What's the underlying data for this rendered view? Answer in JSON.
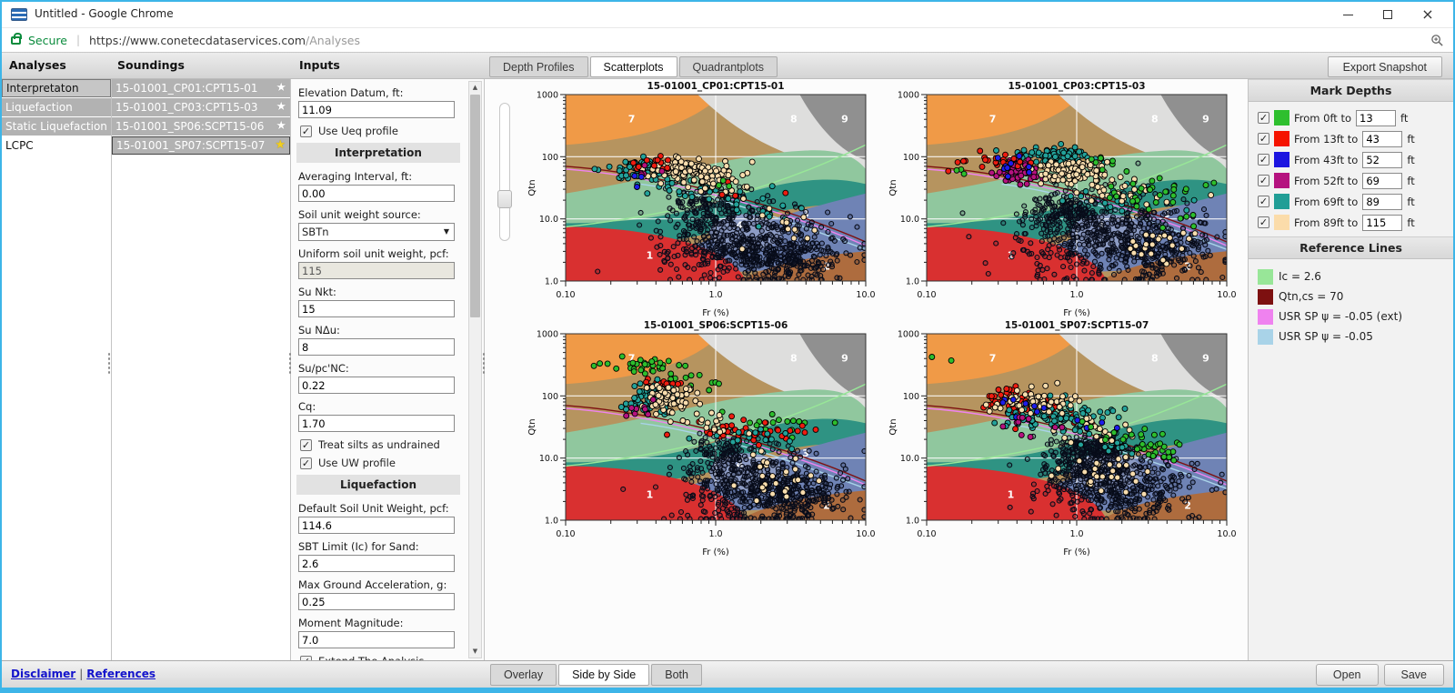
{
  "window": {
    "title": "Untitled - Google Chrome"
  },
  "browser": {
    "secure_label": "Secure",
    "url_sep": "|",
    "url_main": "https://www.conetecdataservices.com",
    "url_path": "/Analyses"
  },
  "header": {
    "analyses_title": "Analyses",
    "soundings_title": "Soundings",
    "inputs_title": "Inputs",
    "tabs": [
      {
        "label": "Depth Profiles",
        "active": false
      },
      {
        "label": "Scatterplots",
        "active": true
      },
      {
        "label": "Quadrantplots",
        "active": false
      }
    ],
    "export_button": "Export Snapshot"
  },
  "analyses": {
    "items": [
      {
        "label": "Interpretaton",
        "style": "selected"
      },
      {
        "label": "Liquefaction",
        "style": "gray"
      },
      {
        "label": "Static Liquefaction",
        "style": "gray"
      },
      {
        "label": "LCPC",
        "style": "plain"
      }
    ]
  },
  "soundings": {
    "items": [
      {
        "label": "15-01001_CP01:CPT15-01",
        "starred": false,
        "selected": false
      },
      {
        "label": "15-01001_CP03:CPT15-03",
        "starred": false,
        "selected": false
      },
      {
        "label": "15-01001_SP06:SCPT15-06",
        "starred": false,
        "selected": false
      },
      {
        "label": "15-01001_SP07:SCPT15-07",
        "starred": true,
        "selected": true
      }
    ]
  },
  "inputs": {
    "fields": [
      {
        "type": "input",
        "label": "Elevation Datum, ft:",
        "value": "11.09"
      },
      {
        "type": "checkbox",
        "label": "Use Ueq profile",
        "checked": true
      },
      {
        "type": "section",
        "label": "Interpretation"
      },
      {
        "type": "input",
        "label": "Averaging Interval, ft:",
        "value": "0.00"
      },
      {
        "type": "select",
        "label": "Soil unit weight source:",
        "value": "SBTn"
      },
      {
        "type": "input_disabled",
        "label": "Uniform soil unit weight, pcf:",
        "value": "115"
      },
      {
        "type": "input",
        "label": "Su Nkt:",
        "value": "15"
      },
      {
        "type": "input",
        "label": "Su NΔu:",
        "value": "8"
      },
      {
        "type": "input",
        "label": "Su/pc'NC:",
        "value": "0.22"
      },
      {
        "type": "input",
        "label": "Cq:",
        "value": "1.70"
      },
      {
        "type": "checkbox",
        "label": "Treat silts as undrained",
        "checked": true
      },
      {
        "type": "checkbox",
        "label": "Use UW profile",
        "checked": true
      },
      {
        "type": "section",
        "label": "Liquefaction"
      },
      {
        "type": "input",
        "label": "Default Soil Unit Weight, pcf:",
        "value": "114.6"
      },
      {
        "type": "input",
        "label": "SBT Limit (Ic) for Sand:",
        "value": "2.6"
      },
      {
        "type": "input",
        "label": "Max Ground Acceleration, g:",
        "value": "0.25"
      },
      {
        "type": "input",
        "label": "Moment Magnitude:",
        "value": "7.0"
      },
      {
        "type": "checkbox",
        "label": "Extend The Analysis",
        "checked": true
      },
      {
        "type": "checkbox",
        "label": "Use UW profile",
        "checked": true
      },
      {
        "type": "checkbox",
        "label": "Use Ueq profile",
        "checked": true
      }
    ]
  },
  "mark_depths": {
    "title": "Mark Depths",
    "rows": [
      {
        "checked": true,
        "color": "#2ebf2e",
        "label": "From 0ft to",
        "value": "13",
        "unit": "ft"
      },
      {
        "checked": true,
        "color": "#f51400",
        "label": "From 13ft to",
        "value": "43",
        "unit": "ft"
      },
      {
        "checked": true,
        "color": "#1b14e0",
        "label": "From 43ft to",
        "value": "52",
        "unit": "ft"
      },
      {
        "checked": true,
        "color": "#b5127f",
        "label": "From 52ft to",
        "value": "69",
        "unit": "ft"
      },
      {
        "checked": true,
        "color": "#219e96",
        "label": "From 69ft to",
        "value": "89",
        "unit": "ft"
      },
      {
        "checked": true,
        "color": "#fbdcaa",
        "label": "From 89ft to",
        "value": "115",
        "unit": "ft"
      }
    ]
  },
  "reference_lines": {
    "title": "Reference Lines",
    "items": [
      {
        "color": "#98e698",
        "label": "Ic = 2.6"
      },
      {
        "color": "#7d1010",
        "label": "Qtn,cs = 70"
      },
      {
        "color": "#ef82ef",
        "label": "USR SP ψ = -0.05 (ext)"
      },
      {
        "color": "#a9d3e8",
        "label": "USR SP ψ = -0.05"
      }
    ]
  },
  "footer": {
    "links": [
      "Disclaimer",
      "References"
    ],
    "link_sep": "|",
    "view_buttons": [
      {
        "label": "Overlay",
        "active": false
      },
      {
        "label": "Side by Side",
        "active": true
      },
      {
        "label": "Both",
        "active": false
      }
    ],
    "open_button": "Open",
    "save_button": "Save"
  },
  "chart_style": {
    "zone_colors": {
      "z1": "#d93030",
      "z2": "#ae6c3e",
      "z3": "#6f83b5",
      "z4": "#8d9cc4",
      "z5": "#90c79e",
      "z6": "#2f9383",
      "z7a": "#f09a47",
      "z7b": "#b6945f",
      "z8": "#dededd",
      "z9": "#909090"
    },
    "zone_labels": [
      {
        "t": "7",
        "u": 0.22,
        "v": 0.87
      },
      {
        "t": "8",
        "u": 0.76,
        "v": 0.87
      },
      {
        "t": "9",
        "u": 0.93,
        "v": 0.87
      },
      {
        "t": "1",
        "u": 0.28,
        "v": 0.14
      },
      {
        "t": "2",
        "u": 0.87,
        "v": 0.08
      },
      {
        "t": "3",
        "u": 0.8,
        "v": 0.36
      },
      {
        "t": "4",
        "u": 0.58,
        "v": 0.3
      }
    ],
    "palette": {
      "g": "#2dbe2d",
      "r": "#ee1c10",
      "b": "#1d1deb",
      "m": "#b5127f",
      "t": "#23a29a",
      "c": "#f8ddae"
    },
    "ref_curves": [
      {
        "name": "Ic = 2.6",
        "color": "#98e698",
        "pts": [
          [
            0,
            0.29
          ],
          [
            0.4,
            0.36
          ],
          [
            0.7,
            0.5
          ],
          [
            1,
            0.73
          ]
        ]
      },
      {
        "name": "USR SP psi=-0.05",
        "color": "#a9d3e8",
        "pts": [
          [
            0.25,
            0.52
          ],
          [
            0.5,
            0.47
          ],
          [
            0.78,
            0.3
          ],
          [
            1,
            0.17
          ]
        ]
      },
      {
        "name": "USR SP psi=-0.05 ext",
        "color": "#ef82ef",
        "pts": [
          [
            0,
            0.6
          ],
          [
            0.3,
            0.565
          ],
          [
            0.7,
            0.4
          ],
          [
            1,
            0.19
          ]
        ]
      },
      {
        "name": "Qtn,cs = 70",
        "color": "#7d1010",
        "pts": [
          [
            0,
            0.615
          ],
          [
            0.3,
            0.58
          ],
          [
            0.7,
            0.42
          ],
          [
            1,
            0.21
          ]
        ]
      }
    ],
    "grid_color": "#ffffff"
  },
  "chart_data": [
    {
      "type": "scatter",
      "title": "15-01001_CP01:CPT15-01",
      "xlabel": "Fr (%)",
      "ylabel": "Qtn",
      "xticks": [
        "0.10",
        "1.0",
        "10.0"
      ],
      "yticks": [
        "1.0",
        "10.0",
        "100",
        "1000"
      ],
      "xrange": [
        0.1,
        10
      ],
      "yrange": [
        1,
        1000
      ],
      "log_axes": true,
      "clusters": [
        {
          "color": "k",
          "x": 0.22,
          "y": 0.55,
          "sx": 0.28,
          "sy": 0.3,
          "n": 450
        },
        {
          "color": "k",
          "x": 0.02,
          "y": 1.1,
          "sx": 0.14,
          "sy": 0.2,
          "n": 140
        },
        {
          "color": "k",
          "x": 0.5,
          "y": 0.35,
          "sx": 0.18,
          "sy": 0.2,
          "n": 150
        },
        {
          "color": "k",
          "x": -0.13,
          "y": 1.33,
          "sx": 0.1,
          "sy": 0.1,
          "n": 35
        },
        {
          "color": "t",
          "x": -0.5,
          "y": 1.78,
          "sx": 0.1,
          "sy": 0.09,
          "n": 75
        },
        {
          "color": "t",
          "x": -0.13,
          "y": 1.58,
          "sx": 0.15,
          "sy": 0.14,
          "n": 40
        },
        {
          "color": "t",
          "x": 0.38,
          "y": 1.1,
          "sx": 0.14,
          "sy": 0.12,
          "n": 12
        },
        {
          "color": "c",
          "x": -0.2,
          "y": 1.8,
          "sx": 0.12,
          "sy": 0.08,
          "n": 90
        },
        {
          "color": "c",
          "x": 0.02,
          "y": 1.6,
          "sx": 0.12,
          "sy": 0.12,
          "n": 45
        },
        {
          "color": "c",
          "x": 0.48,
          "y": 0.9,
          "sx": 0.14,
          "sy": 0.14,
          "n": 13
        },
        {
          "color": "r",
          "x": -0.42,
          "y": 1.88,
          "sx": 0.08,
          "sy": 0.06,
          "n": 13
        },
        {
          "color": "r",
          "x": 0.18,
          "y": 1.5,
          "sx": 0.1,
          "sy": 0.07,
          "n": 4
        },
        {
          "color": "m",
          "x": -0.5,
          "y": 1.7,
          "sx": 0.05,
          "sy": 0.08,
          "n": 5
        },
        {
          "color": "b",
          "x": -0.52,
          "y": 1.62,
          "sx": 0.04,
          "sy": 0.05,
          "n": 3
        },
        {
          "color": "g",
          "x": 0.05,
          "y": 1.55,
          "sx": 0.06,
          "sy": 0.06,
          "n": 3
        }
      ]
    },
    {
      "type": "scatter",
      "title": "15-01001_CP03:CPT15-03",
      "xlabel": "Fr (%)",
      "ylabel": "Qtn",
      "xticks": [
        "0.10",
        "1.0",
        "10.0"
      ],
      "yticks": [
        "1.0",
        "10.0",
        "100",
        "1000"
      ],
      "xrange": [
        0.1,
        10
      ],
      "yrange": [
        1,
        1000
      ],
      "log_axes": true,
      "clusters": [
        {
          "color": "k",
          "x": 0.2,
          "y": 0.7,
          "sx": 0.3,
          "sy": 0.33,
          "n": 480
        },
        {
          "color": "k",
          "x": -0.05,
          "y": 1.15,
          "sx": 0.12,
          "sy": 0.18,
          "n": 130
        },
        {
          "color": "k",
          "x": 0.55,
          "y": 0.45,
          "sx": 0.18,
          "sy": 0.22,
          "n": 170
        },
        {
          "color": "t",
          "x": -0.15,
          "y": 2.0,
          "sx": 0.13,
          "sy": 0.08,
          "n": 85
        },
        {
          "color": "t",
          "x": 0.3,
          "y": 1.35,
          "sx": 0.2,
          "sy": 0.14,
          "n": 18
        },
        {
          "color": "m",
          "x": -0.38,
          "y": 1.75,
          "sx": 0.07,
          "sy": 0.1,
          "n": 55
        },
        {
          "color": "c",
          "x": -0.02,
          "y": 1.75,
          "sx": 0.13,
          "sy": 0.1,
          "n": 110
        },
        {
          "color": "c",
          "x": 0.3,
          "y": 1.42,
          "sx": 0.15,
          "sy": 0.12,
          "n": 30
        },
        {
          "color": "c",
          "x": 0.55,
          "y": 0.6,
          "sx": 0.12,
          "sy": 0.15,
          "n": 22
        },
        {
          "color": "r",
          "x": -0.48,
          "y": 1.92,
          "sx": 0.08,
          "sy": 0.07,
          "n": 20
        },
        {
          "color": "r",
          "x": -0.75,
          "y": 1.85,
          "sx": 0.06,
          "sy": 0.05,
          "n": 4
        },
        {
          "color": "b",
          "x": -0.48,
          "y": 1.8,
          "sx": 0.07,
          "sy": 0.08,
          "n": 10
        },
        {
          "color": "g",
          "x": 0.45,
          "y": 1.45,
          "sx": 0.22,
          "sy": 0.17,
          "n": 28
        },
        {
          "color": "g",
          "x": 0.15,
          "y": 1.92,
          "sx": 0.1,
          "sy": 0.05,
          "n": 8
        },
        {
          "color": "g",
          "x": -0.85,
          "y": 1.78,
          "sx": 0.04,
          "sy": 0.04,
          "n": 3
        },
        {
          "color": "g",
          "x": 0.72,
          "y": 1.1,
          "sx": 0.1,
          "sy": 0.14,
          "n": 6
        }
      ]
    },
    {
      "type": "scatter",
      "title": "15-01001_SP06:SCPT15-06",
      "xlabel": "Fr (%)",
      "ylabel": "Qtn",
      "xticks": [
        "0.10",
        "1.0",
        "10.0"
      ],
      "yticks": [
        "1.0",
        "10.0",
        "100",
        "1000"
      ],
      "xrange": [
        0.1,
        10
      ],
      "yrange": [
        1,
        1000
      ],
      "log_axes": true,
      "clusters": [
        {
          "color": "k",
          "x": 0.28,
          "y": 0.5,
          "sx": 0.27,
          "sy": 0.3,
          "n": 460
        },
        {
          "color": "k",
          "x": 0.05,
          "y": 1.05,
          "sx": 0.13,
          "sy": 0.2,
          "n": 120
        },
        {
          "color": "k",
          "x": 0.55,
          "y": 0.35,
          "sx": 0.15,
          "sy": 0.2,
          "n": 120
        },
        {
          "color": "g",
          "x": -0.48,
          "y": 2.45,
          "sx": 0.14,
          "sy": 0.07,
          "n": 30
        },
        {
          "color": "g",
          "x": -0.25,
          "y": 2.28,
          "sx": 0.08,
          "sy": 0.08,
          "n": 8
        },
        {
          "color": "g",
          "x": 0.35,
          "y": 1.5,
          "sx": 0.15,
          "sy": 0.12,
          "n": 18
        },
        {
          "color": "g",
          "x": 0.02,
          "y": 2.2,
          "sx": 0.05,
          "sy": 0.06,
          "n": 4
        },
        {
          "color": "r",
          "x": -0.35,
          "y": 2.2,
          "sx": 0.08,
          "sy": 0.06,
          "n": 18
        },
        {
          "color": "r",
          "x": 0.2,
          "y": 1.4,
          "sx": 0.2,
          "sy": 0.09,
          "n": 40
        },
        {
          "color": "t",
          "x": -0.42,
          "y": 1.95,
          "sx": 0.09,
          "sy": 0.12,
          "n": 80
        },
        {
          "color": "t",
          "x": 0.25,
          "y": 1.3,
          "sx": 0.17,
          "sy": 0.1,
          "n": 16
        },
        {
          "color": "c",
          "x": -0.3,
          "y": 1.95,
          "sx": 0.1,
          "sy": 0.12,
          "n": 70
        },
        {
          "color": "c",
          "x": -0.08,
          "y": 1.55,
          "sx": 0.12,
          "sy": 0.1,
          "n": 20
        },
        {
          "color": "c",
          "x": 0.4,
          "y": 0.7,
          "sx": 0.15,
          "sy": 0.17,
          "n": 28
        },
        {
          "color": "m",
          "x": -0.52,
          "y": 1.8,
          "sx": 0.05,
          "sy": 0.09,
          "n": 8
        }
      ]
    },
    {
      "type": "scatter",
      "title": "15-01001_SP07:SCPT15-07",
      "xlabel": "Fr (%)",
      "ylabel": "Qtn",
      "xticks": [
        "0.10",
        "1.0",
        "10.0"
      ],
      "yticks": [
        "1.0",
        "10.0",
        "100",
        "1000"
      ],
      "xrange": [
        0.1,
        10
      ],
      "yrange": [
        1,
        1000
      ],
      "log_axes": true,
      "clusters": [
        {
          "color": "k",
          "x": 0.12,
          "y": 1.15,
          "sx": 0.13,
          "sy": 0.09,
          "n": 200
        },
        {
          "color": "k",
          "x": 0.25,
          "y": 0.55,
          "sx": 0.25,
          "sy": 0.28,
          "n": 440
        },
        {
          "color": "k",
          "x": 0.02,
          "y": 0.8,
          "sx": 0.12,
          "sy": 0.15,
          "n": 80
        },
        {
          "color": "r",
          "x": -0.45,
          "y": 1.95,
          "sx": 0.1,
          "sy": 0.12,
          "n": 45
        },
        {
          "color": "r",
          "x": -0.18,
          "y": 1.7,
          "sx": 0.14,
          "sy": 0.12,
          "n": 15
        },
        {
          "color": "t",
          "x": -0.12,
          "y": 1.65,
          "sx": 0.17,
          "sy": 0.13,
          "n": 110
        },
        {
          "color": "t",
          "x": 0.3,
          "y": 1.25,
          "sx": 0.12,
          "sy": 0.1,
          "n": 18
        },
        {
          "color": "c",
          "x": -0.28,
          "y": 1.9,
          "sx": 0.12,
          "sy": 0.1,
          "n": 60
        },
        {
          "color": "c",
          "x": 0.1,
          "y": 1.45,
          "sx": 0.14,
          "sy": 0.12,
          "n": 22
        },
        {
          "color": "c",
          "x": 0.2,
          "y": 0.75,
          "sx": 0.15,
          "sy": 0.15,
          "n": 28
        },
        {
          "color": "b",
          "x": -0.35,
          "y": 1.85,
          "sx": 0.1,
          "sy": 0.1,
          "n": 8
        },
        {
          "color": "b",
          "x": 0.1,
          "y": 1.5,
          "sx": 0.1,
          "sy": 0.08,
          "n": 4
        },
        {
          "color": "m",
          "x": -0.3,
          "y": 1.6,
          "sx": 0.1,
          "sy": 0.1,
          "n": 10
        },
        {
          "color": "g",
          "x": 0.52,
          "y": 1.2,
          "sx": 0.07,
          "sy": 0.13,
          "n": 30
        },
        {
          "color": "g",
          "x": 0.3,
          "y": 1.45,
          "sx": 0.1,
          "sy": 0.08,
          "n": 8
        },
        {
          "color": "g",
          "x": -0.95,
          "y": 2.63,
          "sx": 0.02,
          "sy": 0.02,
          "n": 1
        },
        {
          "color": "g",
          "x": -0.85,
          "y": 2.56,
          "sx": 0.02,
          "sy": 0.02,
          "n": 1
        }
      ]
    }
  ]
}
